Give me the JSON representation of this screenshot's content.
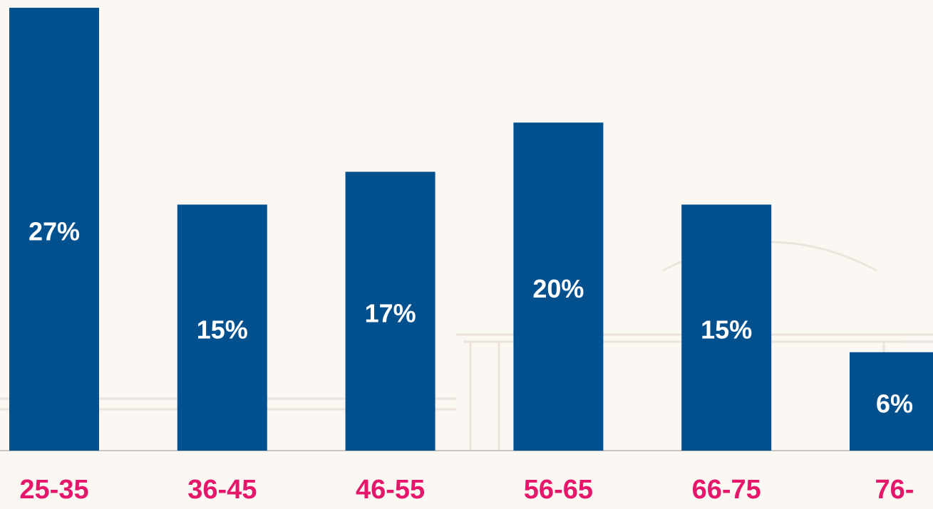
{
  "chart_data": {
    "type": "bar",
    "categories": [
      "25-35",
      "36-45",
      "46-55",
      "56-65",
      "66-75",
      "76-"
    ],
    "values": [
      27,
      15,
      17,
      20,
      15,
      6
    ],
    "value_labels": [
      "27%",
      "15%",
      "17%",
      "20%",
      "15%",
      "6%"
    ],
    "color": "#03508f",
    "label_color": "#e5176b"
  }
}
